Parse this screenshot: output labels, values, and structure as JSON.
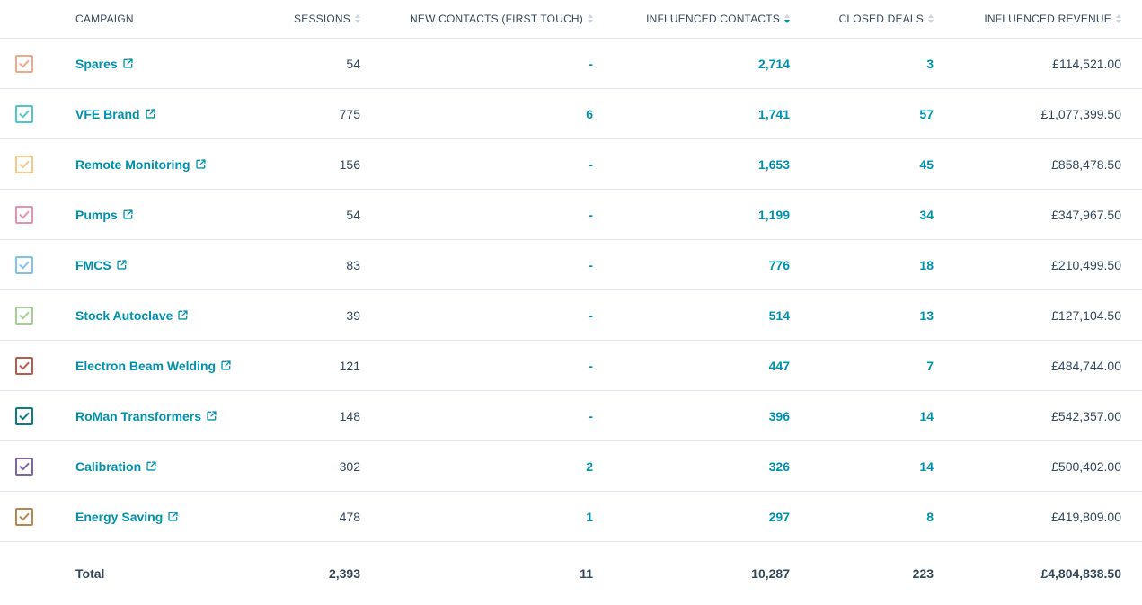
{
  "columns": {
    "campaign": "CAMPAIGN",
    "sessions": "SESSIONS",
    "new_contacts": "NEW CONTACTS (FIRST TOUCH)",
    "influenced_contacts": "INFLUENCED CONTACTS",
    "closed_deals": "CLOSED DEALS",
    "influenced_revenue": "INFLUENCED REVENUE"
  },
  "rows": [
    {
      "name": "Spares",
      "color": "#f2a98a",
      "sessions": "54",
      "new_contacts": "-",
      "influenced": "2,714",
      "closed": "3",
      "revenue": "£114,521.00"
    },
    {
      "name": "VFE Brand",
      "color": "#4fc9cc",
      "sessions": "775",
      "new_contacts": "6",
      "influenced": "1,741",
      "closed": "57",
      "revenue": "£1,077,399.50"
    },
    {
      "name": "Remote Monitoring",
      "color": "#f8c98c",
      "sessions": "156",
      "new_contacts": "-",
      "influenced": "1,653",
      "closed": "45",
      "revenue": "£858,478.50"
    },
    {
      "name": "Pumps",
      "color": "#ea90b1",
      "sessions": "54",
      "new_contacts": "-",
      "influenced": "1,199",
      "closed": "34",
      "revenue": "£347,967.50"
    },
    {
      "name": "FMCS",
      "color": "#7fc4ee",
      "sessions": "83",
      "new_contacts": "-",
      "influenced": "776",
      "closed": "18",
      "revenue": "£210,499.50"
    },
    {
      "name": "Stock Autoclave",
      "color": "#a2d28f",
      "sessions": "39",
      "new_contacts": "-",
      "influenced": "514",
      "closed": "13",
      "revenue": "£127,104.50"
    },
    {
      "name": "Electron Beam Welding",
      "color": "#bc5a4b",
      "sessions": "121",
      "new_contacts": "-",
      "influenced": "447",
      "closed": "7",
      "revenue": "£484,744.00"
    },
    {
      "name": "RoMan Transformers",
      "color": "#0b7d85",
      "sessions": "148",
      "new_contacts": "-",
      "influenced": "396",
      "closed": "14",
      "revenue": "£542,357.00"
    },
    {
      "name": "Calibration",
      "color": "#7c66ae",
      "sessions": "302",
      "new_contacts": "2",
      "influenced": "326",
      "closed": "14",
      "revenue": "£500,402.00"
    },
    {
      "name": "Energy Saving",
      "color": "#b7874e",
      "sessions": "478",
      "new_contacts": "1",
      "influenced": "297",
      "closed": "8",
      "revenue": "£419,809.00"
    }
  ],
  "total": {
    "label": "Total",
    "sessions": "2,393",
    "new_contacts": "11",
    "influenced": "10,287",
    "closed": "223",
    "revenue": "£4,804,838.50"
  },
  "icons": {
    "checkbox": "check-icon",
    "external": "external-link-icon",
    "sort": "sort-icon"
  }
}
